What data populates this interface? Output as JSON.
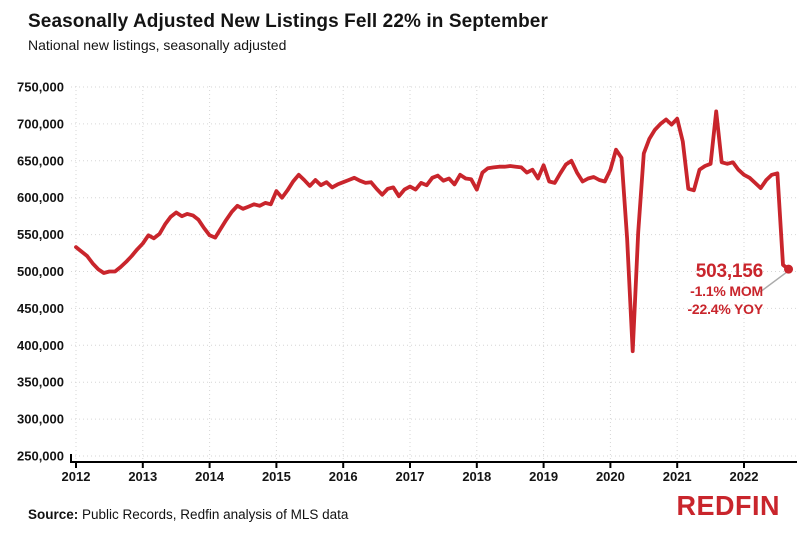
{
  "header": {
    "title": "Seasonally Adjusted New Listings Fell 22% in September",
    "subtitle": "National new listings, seasonally adjusted"
  },
  "footer": {
    "source_label": "Source:",
    "source_text": " Public Records, Redfin analysis of MLS data",
    "logo_text": "REDFIN"
  },
  "colors": {
    "accent": "#C9252C",
    "text": "#141414",
    "grid": "#d6d6d6",
    "axis": "#000000",
    "connector": "#ababab"
  },
  "chart_data": {
    "type": "line",
    "title": "Seasonally Adjusted New Listings Fell 22% in September",
    "subtitle": "National new listings, seasonally adjusted",
    "xlabel": "",
    "ylabel": "",
    "x_start": "2012-01",
    "x_end": "2022-09",
    "frequency": "monthly",
    "x_ticks": [
      2012,
      2013,
      2014,
      2015,
      2016,
      2017,
      2018,
      2019,
      2020,
      2021,
      2022
    ],
    "ylim": [
      250000,
      750000
    ],
    "y_tick_step": 50000,
    "grid": "dotted",
    "legend": "none",
    "series": [
      {
        "name": "National new listings, seasonally adjusted",
        "color": "#C9252C",
        "values": [
          533000,
          527000,
          521000,
          511000,
          503000,
          498000,
          500000,
          500000,
          506000,
          513000,
          521000,
          530000,
          538000,
          549000,
          545000,
          551000,
          564000,
          574000,
          580000,
          575000,
          578000,
          576000,
          570000,
          559000,
          549000,
          546000,
          558000,
          570000,
          581000,
          589000,
          585000,
          588000,
          591000,
          589000,
          593000,
          591000,
          609000,
          600000,
          610000,
          622000,
          631000,
          624000,
          616000,
          624000,
          617000,
          621000,
          614000,
          618000,
          621000,
          624000,
          627000,
          623000,
          620000,
          621000,
          612000,
          604000,
          612000,
          614000,
          602000,
          611000,
          615000,
          611000,
          620000,
          617000,
          627000,
          630000,
          623000,
          626000,
          618000,
          631000,
          626000,
          625000,
          611000,
          634000,
          640000,
          641000,
          642000,
          642000,
          643000,
          642000,
          641000,
          634000,
          638000,
          626000,
          644000,
          622000,
          620000,
          633000,
          645000,
          650000,
          634000,
          622000,
          626000,
          628000,
          624000,
          622000,
          638000,
          665000,
          654000,
          545000,
          392000,
          553000,
          660000,
          680000,
          692000,
          700000,
          706000,
          699000,
          707000,
          676000,
          612000,
          610000,
          638000,
          643000,
          646000,
          717000,
          648000,
          646000,
          648000,
          638000,
          631000,
          627000,
          620000,
          613000,
          624000,
          631000,
          633000,
          509000,
          503156
        ]
      }
    ],
    "annotation": {
      "value_label": "503,156",
      "mom_label": "-1.1% MOM",
      "yoy_label": "-22.4% YOY",
      "last_value": 503156
    }
  }
}
